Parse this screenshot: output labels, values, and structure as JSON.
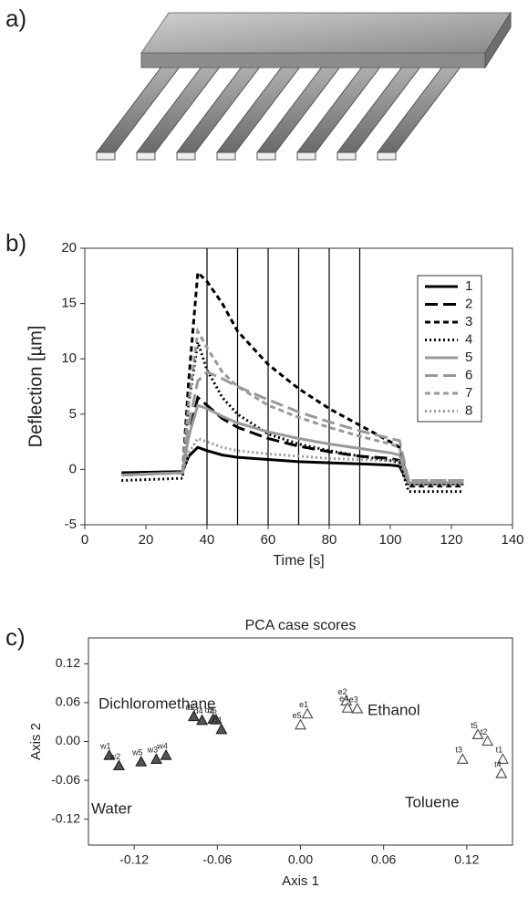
{
  "panel_labels": [
    "a)",
    "b)",
    "c)"
  ],
  "chart_data": [
    {
      "type": "line",
      "xlabel": "Time [s]",
      "ylabel": "Deflection [µm]",
      "xlim": [
        0,
        140
      ],
      "xticks": [
        0,
        20,
        40,
        60,
        80,
        100,
        120,
        140
      ],
      "ylim": [
        -5,
        20
      ],
      "yticks": [
        -5,
        0,
        5,
        10,
        15,
        20
      ],
      "vlines": [
        40,
        50,
        60,
        70,
        80,
        90
      ],
      "legend": "upper right",
      "x": [
        12,
        32,
        34,
        37,
        40,
        45,
        50,
        60,
        70,
        80,
        90,
        100,
        103,
        106,
        110,
        124
      ],
      "series": [
        {
          "name": "1",
          "color": "#000000",
          "dash": "solid",
          "values": [
            -0.3,
            -0.2,
            1.2,
            2.0,
            1.7,
            1.3,
            1.1,
            0.9,
            0.7,
            0.6,
            0.5,
            0.4,
            0.3,
            -1.3,
            -1.3,
            -1.3
          ]
        },
        {
          "name": "2",
          "color": "#000000",
          "dash": "long",
          "values": [
            -0.5,
            -0.3,
            3,
            6.5,
            5.8,
            4.6,
            3.8,
            2.8,
            2.1,
            1.6,
            1.2,
            1.0,
            0.8,
            -1.2,
            -1.2,
            -1.2
          ]
        },
        {
          "name": "3",
          "color": "#000000",
          "dash": "short",
          "values": [
            -0.5,
            -0.3,
            8,
            17.8,
            17.0,
            15,
            12.5,
            9.5,
            7.3,
            5.5,
            4,
            2.5,
            2.0,
            -1.5,
            -1.5,
            -1.5
          ]
        },
        {
          "name": "4",
          "color": "#000000",
          "dash": "dot",
          "values": [
            -1,
            -0.8,
            6,
            11.5,
            9,
            6.5,
            5,
            3.2,
            2.3,
            1.7,
            1.2,
            0.8,
            0.6,
            -2,
            -2,
            -2
          ]
        },
        {
          "name": "5",
          "color": "#999999",
          "dash": "solid",
          "values": [
            -0.5,
            -0.3,
            3,
            5.8,
            5.5,
            4.8,
            4.2,
            3.4,
            2.8,
            2.3,
            1.9,
            1.5,
            1.3,
            -1.2,
            -1.2,
            -1.2
          ]
        },
        {
          "name": "6",
          "color": "#999999",
          "dash": "long",
          "values": [
            -0.5,
            -0.3,
            4,
            8,
            8.8,
            8.2,
            7.5,
            6.3,
            5.2,
            4.3,
            3.5,
            2.8,
            2.6,
            -1.0,
            -1.0,
            -1.0
          ]
        },
        {
          "name": "7",
          "color": "#999999",
          "dash": "short",
          "values": [
            -0.5,
            -0.3,
            6,
            12.5,
            11,
            8.8,
            7.5,
            5.8,
            4.7,
            3.8,
            3,
            2.3,
            2.0,
            -1.0,
            -1.0,
            -1.0
          ]
        },
        {
          "name": "8",
          "color": "#999999",
          "dash": "dot",
          "values": [
            -0.5,
            -0.3,
            1.5,
            2.8,
            2.5,
            2,
            1.7,
            1.4,
            1.2,
            1,
            0.9,
            0.8,
            0.7,
            -1.4,
            -1.4,
            -1.4
          ]
        }
      ]
    },
    {
      "type": "scatter",
      "title": "PCA case scores",
      "xlabel": "Axis 1",
      "ylabel": "Axis 2",
      "xlim": [
        -0.153,
        0.153
      ],
      "xticks": [
        -0.12,
        -0.06,
        {
          "value": 0,
          "label": "0.00"
        },
        0.06,
        0.12
      ],
      "ylim": [
        -0.16,
        0.16
      ],
      "yticks": [
        -0.12,
        -0.06,
        {
          "value": 0,
          "label": "0.00"
        },
        0.06,
        0.12
      ],
      "series": [
        {
          "name": "Water",
          "color": "#555555",
          "filled": true,
          "labels": [
            "w1",
            "w2",
            "w5",
            "w3",
            "w4"
          ],
          "x": [
            -0.138,
            -0.131,
            -0.115,
            -0.104,
            -0.097
          ],
          "y": [
            -0.022,
            -0.038,
            -0.032,
            -0.028,
            -0.022
          ]
        },
        {
          "name": "Dichloromethane",
          "color": "#555555",
          "filled": true,
          "labels": [
            "d2",
            "d4",
            "d3",
            "d5",
            "d1"
          ],
          "x": [
            -0.077,
            -0.071,
            -0.063,
            -0.061,
            -0.057
          ],
          "y": [
            0.038,
            0.032,
            0.034,
            0.033,
            0.018
          ]
        },
        {
          "name": "Ethanol",
          "color": "#555555",
          "filled": false,
          "labels": [
            "e1",
            "e5",
            "e2",
            "e4",
            "e3"
          ],
          "x": [
            0.005,
            0.0,
            0.033,
            0.034,
            0.041
          ],
          "y": [
            0.042,
            0.025,
            0.062,
            0.051,
            0.05
          ]
        },
        {
          "name": "Toluene",
          "color": "#555555",
          "filled": false,
          "labels": [
            "t5",
            "t2",
            "t3",
            "t1",
            "t4"
          ],
          "x": [
            0.128,
            0.135,
            0.117,
            0.146,
            0.145
          ],
          "y": [
            0.01,
            0.0,
            -0.028,
            -0.028,
            -0.05
          ]
        }
      ]
    }
  ]
}
